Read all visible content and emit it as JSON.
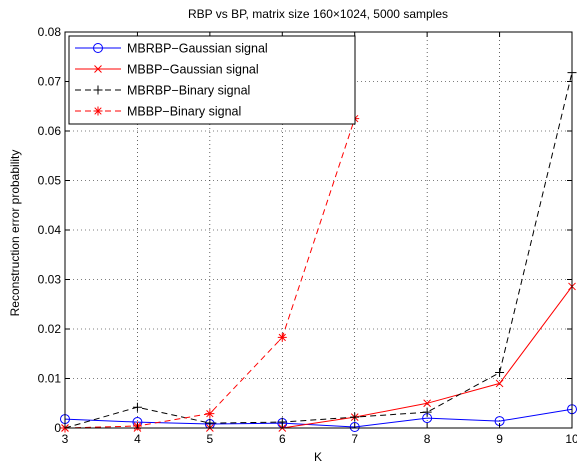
{
  "chart_data": {
    "type": "line",
    "title": "RBP vs BP, matrix size 160×1024, 5000 samples",
    "xlabel": "K",
    "ylabel": "Reconstruction error probability",
    "xlim": [
      3,
      10
    ],
    "ylim": [
      0,
      0.08
    ],
    "xticks": [
      3,
      4,
      5,
      6,
      7,
      8,
      9,
      10
    ],
    "yticks": [
      0,
      0.01,
      0.02,
      0.03,
      0.04,
      0.05,
      0.06,
      0.07,
      0.08
    ],
    "xtick_labels": [
      "3",
      "4",
      "5",
      "6",
      "7",
      "8",
      "9",
      "10"
    ],
    "ytick_labels": [
      "0",
      "0.01",
      "0.02",
      "0.03",
      "0.04",
      "0.05",
      "0.06",
      "0.07",
      "0.08"
    ],
    "grid": true,
    "legend_position": "top-left",
    "series": [
      {
        "name": "MBRBP−Gaussian signal",
        "color": "#0000ff",
        "dash": "solid",
        "marker": "circle",
        "x": [
          3,
          4,
          5,
          6,
          7,
          8,
          9,
          10
        ],
        "y": [
          0.0018,
          0.0012,
          0.0008,
          0.001,
          0.0002,
          0.002,
          0.0014,
          0.0038
        ]
      },
      {
        "name": "MBBP−Gaussian signal",
        "color": "#ff0000",
        "dash": "solid",
        "marker": "x",
        "x": [
          3,
          4,
          5,
          6,
          7,
          8,
          9,
          10
        ],
        "y": [
          0.0,
          0.0,
          0.0,
          0.0,
          0.0022,
          0.005,
          0.009,
          0.0286
        ]
      },
      {
        "name": "MBRBP−Binary signal",
        "color": "#000000",
        "dash": "dashed",
        "marker": "plus",
        "x": [
          3,
          4,
          5,
          6,
          7,
          8,
          9,
          10
        ],
        "y": [
          0.0,
          0.0042,
          0.001,
          0.0012,
          0.0022,
          0.0032,
          0.0112,
          0.0718
        ]
      },
      {
        "name": "MBBP−Binary signal",
        "color": "#ff0000",
        "dash": "dashed",
        "marker": "star",
        "x": [
          3,
          4,
          5,
          6,
          7
        ],
        "y": [
          0.0,
          0.0004,
          0.0029,
          0.0183,
          0.0625
        ]
      }
    ]
  }
}
